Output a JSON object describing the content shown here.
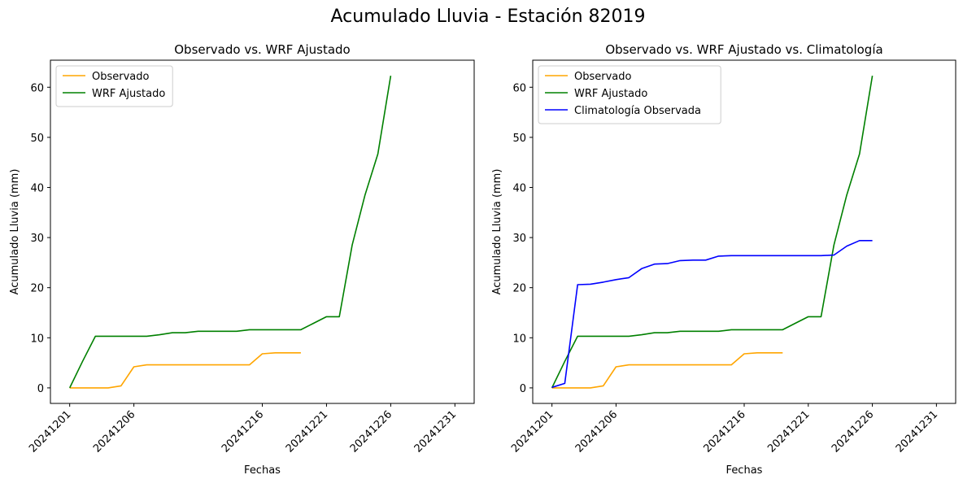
{
  "figure": {
    "suptitle": "Acumulado Lluvia - Estación 82019"
  },
  "chart_data": [
    {
      "type": "line",
      "title": "Observado vs. WRF Ajustado",
      "xlabel": "Fechas",
      "ylabel": "Acumulado Lluvia (mm)",
      "ylim": [
        -3.1,
        65.4
      ],
      "yticks": [
        0,
        10,
        20,
        30,
        40,
        50,
        60
      ],
      "xticks": [
        "20241201",
        "20241206",
        "20241216",
        "20241221",
        "20241226",
        "20241231"
      ],
      "x": [
        "20241201",
        "20241202",
        "20241203",
        "20241204",
        "20241205",
        "20241206",
        "20241207",
        "20241208",
        "20241209",
        "20241210",
        "20241211",
        "20241212",
        "20241213",
        "20241214",
        "20241215",
        "20241216",
        "20241217",
        "20241218",
        "20241219",
        "20241220",
        "20241221",
        "20241222",
        "20241223",
        "20241224",
        "20241225",
        "20241226",
        "20241227",
        "20241228",
        "20241229",
        "20241230",
        "20241231"
      ],
      "legend_loc": "upper left",
      "grid": false,
      "series": [
        {
          "name": "Observado",
          "color": "#ffa500",
          "values": [
            0,
            0,
            0,
            0,
            0.4,
            4.2,
            4.6,
            4.6,
            4.6,
            4.6,
            4.6,
            4.6,
            4.6,
            4.6,
            4.6,
            6.8,
            7.0,
            7.0,
            7.0,
            null,
            null,
            null,
            null,
            null,
            null,
            null,
            null,
            null,
            null,
            null,
            null
          ]
        },
        {
          "name": "WRF Ajustado",
          "color": "#008000",
          "values": [
            0,
            5.3,
            10.3,
            10.3,
            10.3,
            10.3,
            10.3,
            10.6,
            11.0,
            11.0,
            11.3,
            11.3,
            11.3,
            11.3,
            11.6,
            11.6,
            11.6,
            11.6,
            11.6,
            12.9,
            14.2,
            14.2,
            28.5,
            38.5,
            46.7,
            62.3,
            null,
            null,
            null,
            null,
            null
          ]
        }
      ]
    },
    {
      "type": "line",
      "title": "Observado vs. WRF Ajustado vs. Climatología",
      "xlabel": "Fechas",
      "ylabel": "Acumulado Lluvia (mm)",
      "ylim": [
        -3.1,
        65.4
      ],
      "yticks": [
        0,
        10,
        20,
        30,
        40,
        50,
        60
      ],
      "xticks": [
        "20241201",
        "20241206",
        "20241216",
        "20241221",
        "20241226",
        "20241231"
      ],
      "x": [
        "20241201",
        "20241202",
        "20241203",
        "20241204",
        "20241205",
        "20241206",
        "20241207",
        "20241208",
        "20241209",
        "20241210",
        "20241211",
        "20241212",
        "20241213",
        "20241214",
        "20241215",
        "20241216",
        "20241217",
        "20241218",
        "20241219",
        "20241220",
        "20241221",
        "20241222",
        "20241223",
        "20241224",
        "20241225",
        "20241226",
        "20241227",
        "20241228",
        "20241229",
        "20241230",
        "20241231"
      ],
      "legend_loc": "upper left",
      "grid": false,
      "series": [
        {
          "name": "Observado",
          "color": "#ffa500",
          "values": [
            0,
            0,
            0,
            0,
            0.4,
            4.2,
            4.6,
            4.6,
            4.6,
            4.6,
            4.6,
            4.6,
            4.6,
            4.6,
            4.6,
            6.8,
            7.0,
            7.0,
            7.0,
            null,
            null,
            null,
            null,
            null,
            null,
            null,
            null,
            null,
            null,
            null,
            null
          ]
        },
        {
          "name": "WRF Ajustado",
          "color": "#008000",
          "values": [
            0,
            5.3,
            10.3,
            10.3,
            10.3,
            10.3,
            10.3,
            10.6,
            11.0,
            11.0,
            11.3,
            11.3,
            11.3,
            11.3,
            11.6,
            11.6,
            11.6,
            11.6,
            11.6,
            12.9,
            14.2,
            14.2,
            28.5,
            38.5,
            46.7,
            62.3,
            null,
            null,
            null,
            null,
            null
          ]
        },
        {
          "name": "Climatología Observada",
          "color": "#0000ff",
          "values": [
            0.1,
            0.9,
            20.6,
            20.7,
            21.1,
            21.6,
            22.0,
            23.8,
            24.7,
            24.8,
            25.4,
            25.5,
            25.5,
            26.3,
            26.4,
            26.4,
            26.4,
            26.4,
            26.4,
            26.4,
            26.4,
            26.4,
            26.5,
            28.3,
            29.4,
            29.4,
            null,
            null,
            null,
            null,
            null
          ]
        }
      ]
    }
  ]
}
